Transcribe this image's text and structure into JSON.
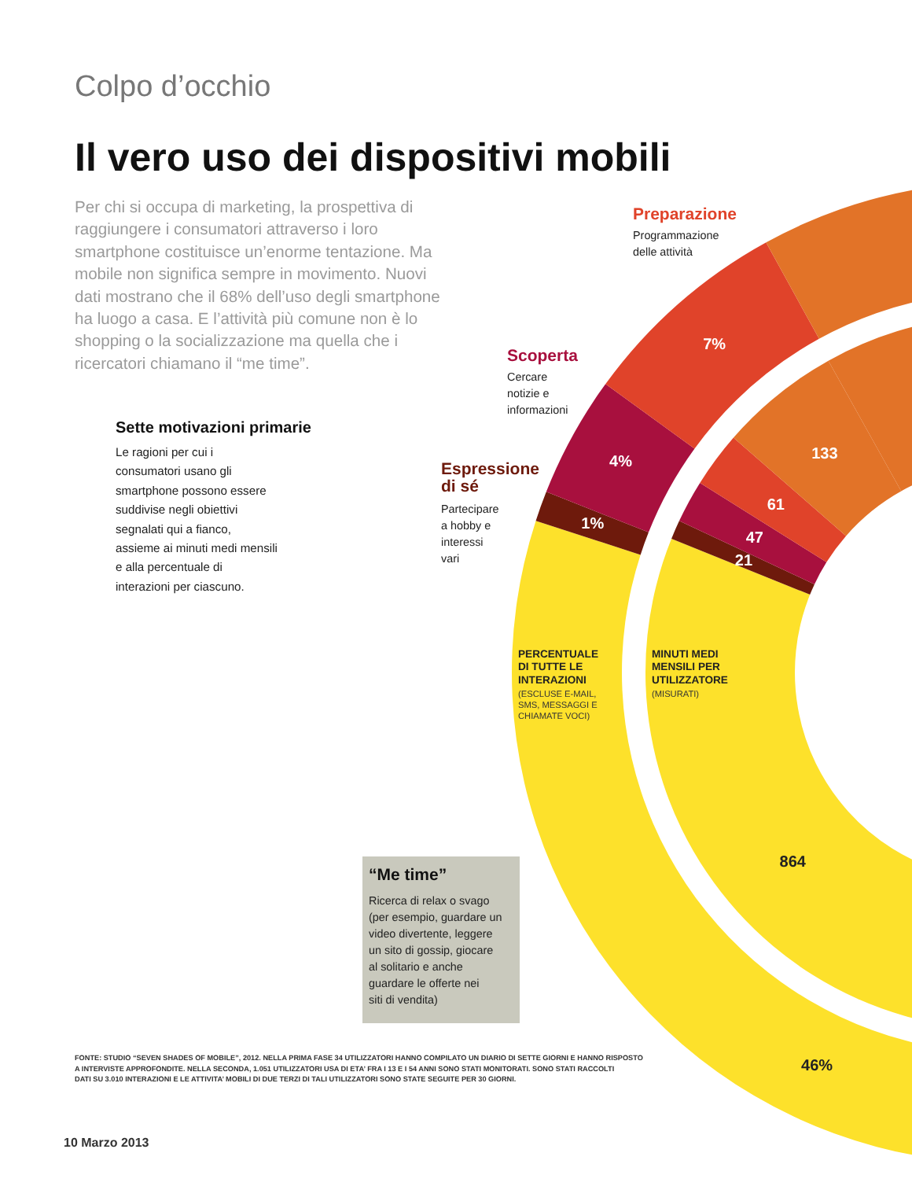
{
  "chart_data": [
    {
      "type": "other",
      "title": "Il vero uso dei dispositivi mobili",
      "annotations": [
        "Colpo d’occhio",
        "Per chi si occupa di marketing, la prospettiva di raggiungere i consumatori attraverso i loro smartphone costituisce un’enorme tentazione. Ma mobile non significa sempre in movimento. Nuovi dati mostrano che il 68% dell’uso degli smartphone ha luogo a casa. E l’attività più comune non è lo shopping o la socializzazione ma quella che i ricercatori chiamano il “me time”.",
        "Sette motivazioni primarie",
        "Le ragioni per cui i consumatori usano gli smartphone possono essere suddivise negli obiettivi segnalati qui a fianco, assieme ai minuti medi mensili e alla percentuale di interazioni per ciascuno.",
        "FONTE: STUDIO “SEVEN SHADES OF MOBILE”, 2012. NELLA PRIMA FASE 34 UTILIZZATORI HANNO COMPILATO UN DIARIO DI SETTE GIORNI E HANNO RISPOSTO A INTERVISTE APPROFONDITE. NELLA SECONDA, 1.051 UTILIZZATORI USA DI ETA’ FRA I 13 E I 54 ANNI SONO STATI MONITORATI. SONO STATI RACCOLTI DATI SU 3.010 INTERAZIONI E LE ATTIVITA’ MOBILI DI DUE TERZI DI TALI UTILIZZATORI SONO STATE SEGUITE PER 30 GIORNI.",
        "10 Marzo 2013"
      ]
    },
    {
      "type": "donut",
      "categories": [
        "“Me time”",
        "Espressione di sé",
        "Scoperta",
        "Preparazione",
        null,
        null
      ],
      "colors": [
        "#fde12b",
        "#6e1a0c",
        "#a8103e",
        "#e0432a",
        "#e27328",
        "#e27328"
      ],
      "series": [
        {
          "name": "PERCENTUALE DI TUTTE LE INTERAZIONI",
          "values": [
            46,
            1,
            4,
            7,
            42,
            null
          ],
          "value_labels": [
            "46%",
            "1%",
            "4%",
            "7%",
            null,
            null
          ]
        },
        {
          "name": "MINUTI MEDI MENSILI PER UTILIZZATORE",
          "values": [
            864,
            21,
            47,
            61,
            133,
            1304
          ],
          "value_labels": [
            "864",
            "21",
            "47",
            "61",
            "133",
            null
          ]
        }
      ],
      "annotations": [
        "Ricerca di relax o svago (per esempio, guardare un video divertente, leggere un sito di gossip, giocare al solitario e anche guardare le offerte nei siti di vendita)",
        "Partecipare a hobby e interessi vari",
        "Cercare notizie e informazioni",
        "Programmazione delle attività",
        "(ESCLUSE E-MAIL, SMS, MESSAGGI E CHIAMATE VOCI)",
        "(MISURATI)"
      ]
    }
  ]
}
